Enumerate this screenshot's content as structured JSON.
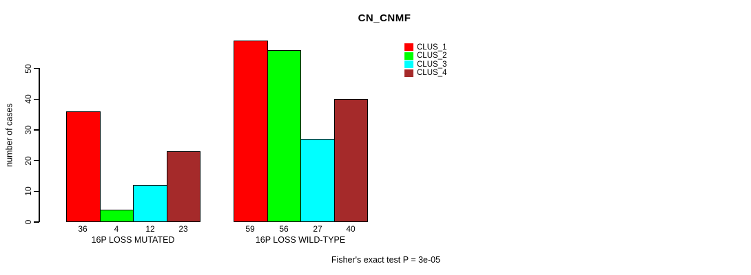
{
  "chart_data": {
    "type": "bar",
    "title": "CN_CNMF",
    "ylabel": "number of cases",
    "xlabel": "",
    "ylim": [
      0,
      59
    ],
    "yticks": [
      0,
      10,
      20,
      30,
      40,
      50
    ],
    "grid": false,
    "legend_position": "top-right",
    "bar_value_labels_shown": true,
    "categories": [
      "16P LOSS MUTATED",
      "16P LOSS WILD-TYPE"
    ],
    "series": [
      {
        "name": "CLUS_1",
        "color": "#FF0000",
        "values": [
          36,
          59
        ]
      },
      {
        "name": "CLUS_2",
        "color": "#00FF00",
        "values": [
          4,
          56
        ]
      },
      {
        "name": "CLUS_3",
        "color": "#00FFFF",
        "values": [
          12,
          27
        ]
      },
      {
        "name": "CLUS_4",
        "color": "#A52A2A",
        "values": [
          23,
          40
        ]
      }
    ],
    "annotation": "Fisher's exact test P = 3e-05"
  },
  "colors": {
    "background": "#FFFFFF",
    "axis": "#000000",
    "text": "#000000",
    "bar_border": "#000000"
  }
}
